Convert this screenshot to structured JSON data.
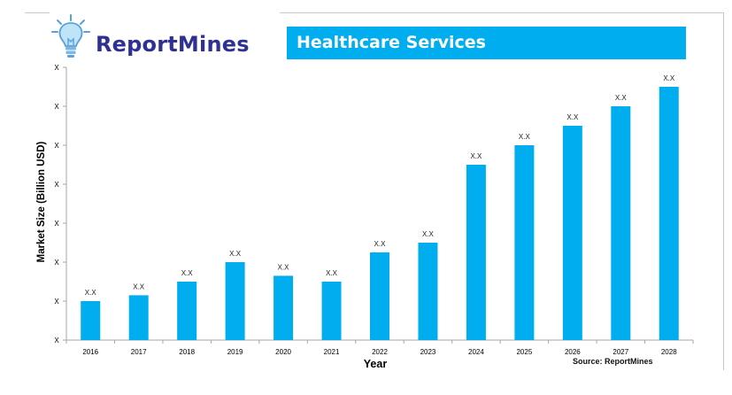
{
  "brand": {
    "name": "ReportMines",
    "bulb_icon": "lightbulb-icon"
  },
  "title": "Healthcare Services",
  "source": "Source: ReportMines",
  "colors": {
    "bar": "#00aeef",
    "title_bg": "#00aeef",
    "brand_text": "#2e3192",
    "axis": "#a6a6a6"
  },
  "chart_data": {
    "type": "bar",
    "xlabel": "Year",
    "ylabel": "Market Size (Billion USD)",
    "categories": [
      "2016",
      "2017",
      "2018",
      "2019",
      "2020",
      "2021",
      "2022",
      "2023",
      "2024",
      "2025",
      "2026",
      "2027",
      "2028"
    ],
    "values": [
      1.0,
      1.15,
      1.5,
      2.0,
      1.65,
      1.5,
      2.25,
      2.5,
      4.5,
      5.0,
      5.5,
      6.0,
      6.5
    ],
    "data_labels": [
      "X.X",
      "X.X",
      "X.X",
      "X.X",
      "X.X",
      "X.X",
      "X.X",
      "X.X",
      "X.X",
      "X.X",
      "X.X",
      "X.X",
      "X.X"
    ],
    "ylim": [
      0,
      7
    ],
    "yticks": [
      0,
      1,
      2,
      3,
      4,
      5,
      6,
      7
    ],
    "ytick_labels": [
      "X",
      "X",
      "X",
      "X",
      "X",
      "X",
      "X",
      "X"
    ],
    "grid": false,
    "legend": "none"
  }
}
